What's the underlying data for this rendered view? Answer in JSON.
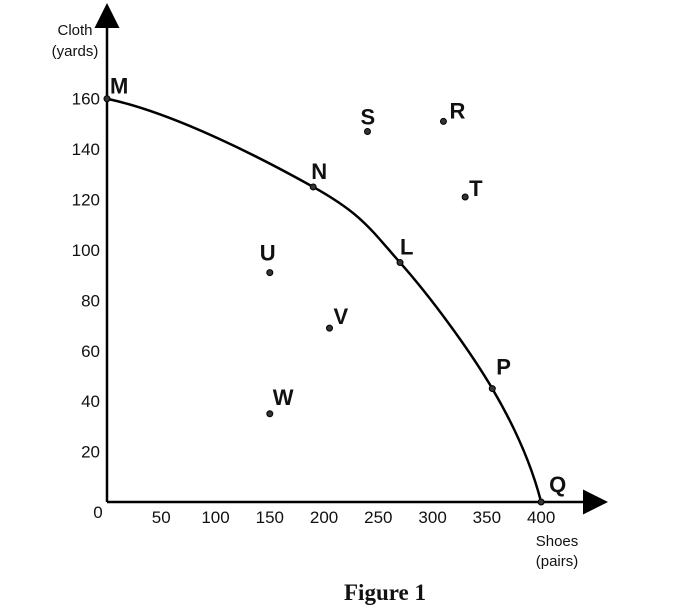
{
  "chart_data": {
    "type": "line",
    "caption": "Figure 1",
    "y_label": [
      "Cloth",
      "(yards)"
    ],
    "x_label": [
      "Shoes",
      "(pairs)"
    ],
    "xlim": [
      0,
      457
    ],
    "ylim": [
      0,
      196
    ],
    "xticks": [
      0,
      50,
      100,
      150,
      200,
      250,
      300,
      350,
      400
    ],
    "yticks": [
      20,
      40,
      60,
      80,
      100,
      120,
      140,
      160
    ],
    "curve_points": {
      "labels": [
        "M",
        "N",
        "L",
        "P",
        "Q"
      ],
      "x": [
        0,
        190,
        270,
        355,
        400
      ],
      "values": [
        160,
        125,
        95,
        45,
        0
      ]
    },
    "other_points": {
      "labels": [
        "S",
        "R",
        "T",
        "U",
        "V",
        "W"
      ],
      "x": [
        240,
        310,
        330,
        150,
        205,
        150
      ],
      "values": [
        147,
        151,
        121,
        91,
        69,
        35
      ]
    },
    "color": "#000000"
  }
}
